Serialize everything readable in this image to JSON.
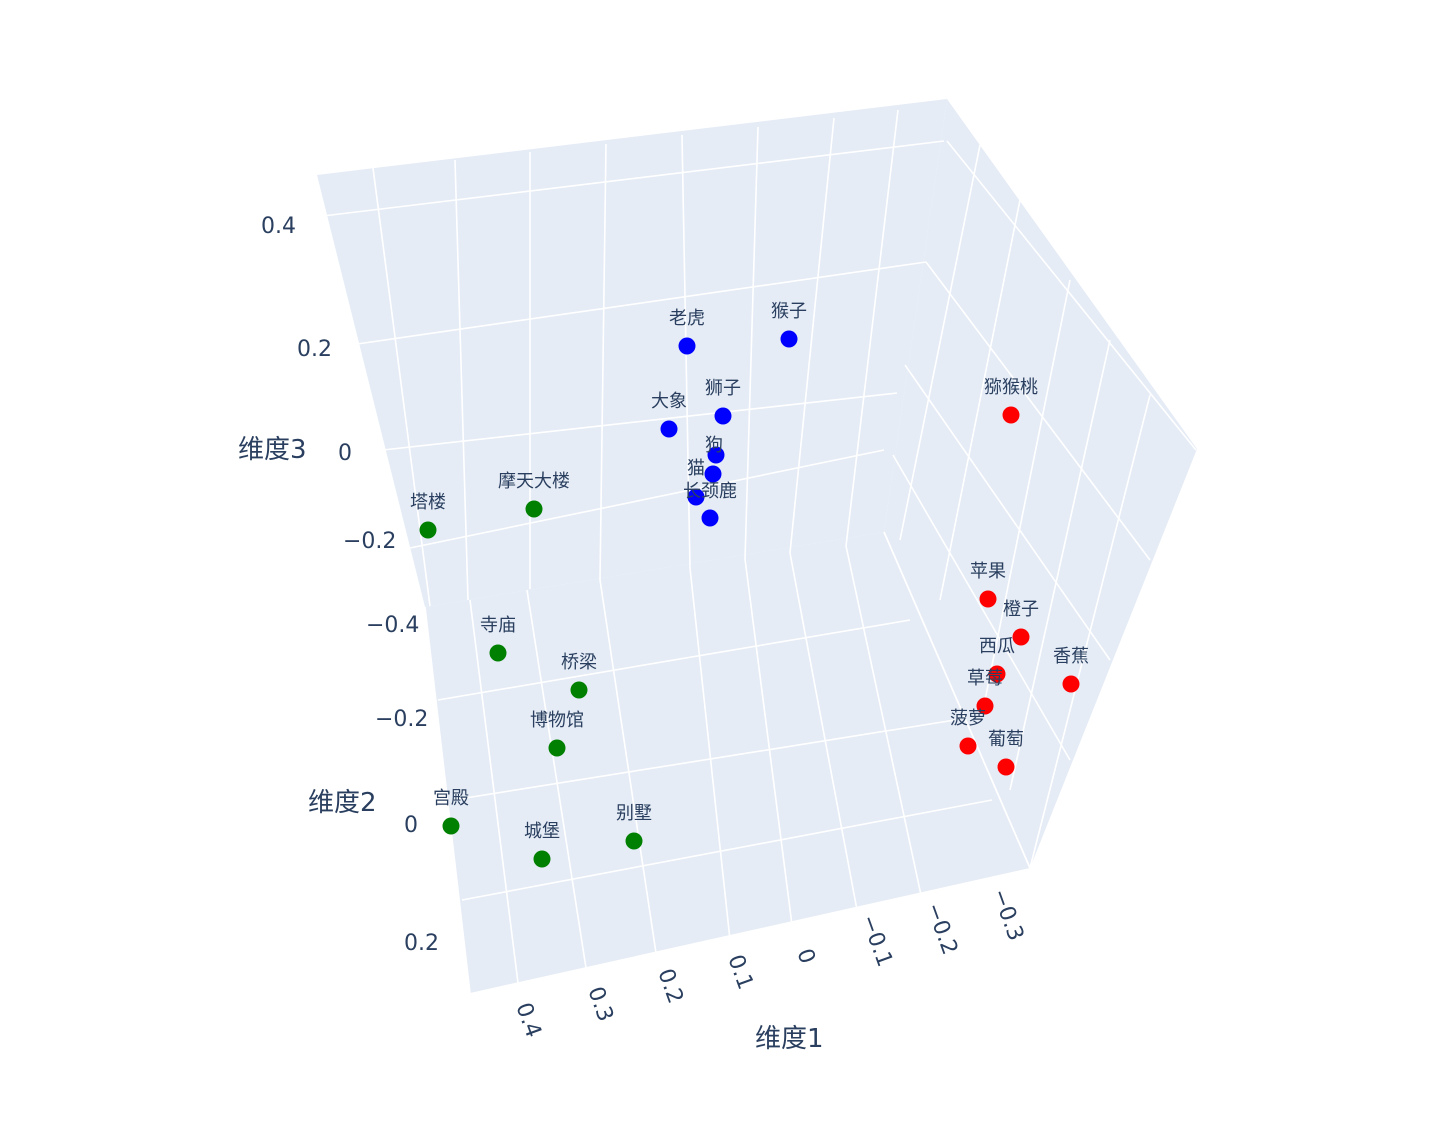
{
  "chart_data": {
    "type": "scatter3d",
    "xlabel": "维度1",
    "ylabel": "维度2",
    "zlabel": "维度3",
    "x_ticks": [
      "0.4",
      "0.3",
      "0.2",
      "0.1",
      "0",
      "−0.1",
      "−0.2",
      "−0.3"
    ],
    "y_ticks": [
      "−0.4",
      "−0.2",
      "0",
      "0.2"
    ],
    "z_ticks": [
      "0.4",
      "0.2",
      "0",
      "−0.2"
    ],
    "pane_color": "#e5ecf6",
    "grid_color": "#ffffff",
    "points": [
      {
        "label": "老虎",
        "color": "#0000ff"
      },
      {
        "label": "猴子",
        "color": "#0000ff"
      },
      {
        "label": "狮子",
        "color": "#0000ff"
      },
      {
        "label": "大象",
        "color": "#0000ff"
      },
      {
        "label": "狗",
        "color": "#0000ff"
      },
      {
        "label": "猫",
        "color": "#0000ff"
      },
      {
        "label": "长颈鹿",
        "color": "#0000ff"
      },
      {
        "label": "",
        "color": "#0000ff"
      },
      {
        "label": "猕猴桃",
        "color": "#ff0000"
      },
      {
        "label": "苹果",
        "color": "#ff0000"
      },
      {
        "label": "橙子",
        "color": "#ff0000"
      },
      {
        "label": "西瓜",
        "color": "#ff0000"
      },
      {
        "label": "香蕉",
        "color": "#ff0000"
      },
      {
        "label": "草莓",
        "color": "#ff0000"
      },
      {
        "label": "菠萝",
        "color": "#ff0000"
      },
      {
        "label": "葡萄",
        "color": "#ff0000"
      },
      {
        "label": "塔楼",
        "color": "#008000"
      },
      {
        "label": "摩天大楼",
        "color": "#008000"
      },
      {
        "label": "寺庙",
        "color": "#008000"
      },
      {
        "label": "桥梁",
        "color": "#008000"
      },
      {
        "label": "博物馆",
        "color": "#008000"
      },
      {
        "label": "宫殿",
        "color": "#008000"
      },
      {
        "label": "城堡",
        "color": "#008000"
      },
      {
        "label": "别墅",
        "color": "#008000"
      }
    ]
  }
}
